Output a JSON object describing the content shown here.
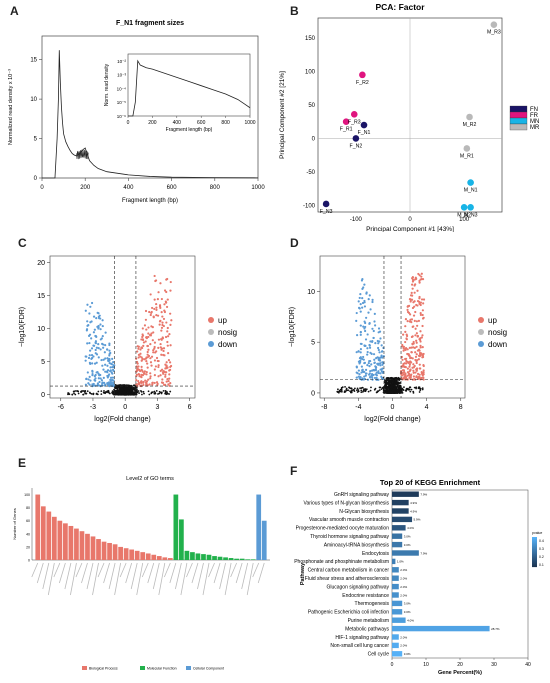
{
  "panels": {
    "A": "A",
    "B": "B",
    "C": "C",
    "D": "D",
    "E": "E",
    "F": "F"
  },
  "colors": {
    "up": "#e8776b",
    "down": "#5b9bd5",
    "nosig": "#111111",
    "FN": "#1a1466",
    "FR": "#e0157f",
    "MN": "#18b4e6",
    "MR": "#b9b9b9",
    "go_bp": "#e8776b",
    "go_mf": "#22b14c",
    "go_cc": "#5b9bd5",
    "kegg_dark": "#1c3553",
    "kegg_light": "#56b1f7"
  },
  "chart_data": [
    {
      "id": "A",
      "type": "line",
      "title": "F_N1 fragment sizes",
      "xlabel": "Fragment length (bp)",
      "ylabel": "Normalized read density x 10⁻³",
      "xticks": [
        "0",
        "200",
        "400",
        "600",
        "800",
        "1000"
      ],
      "yticks": [
        "0",
        "5",
        "10",
        "15"
      ],
      "xlim": [
        0,
        1000
      ],
      "ylim": [
        0,
        18
      ],
      "series": [
        {
          "x": [
            0,
            60,
            70,
            76,
            80,
            85,
            90,
            95,
            100,
            110,
            120,
            130,
            140,
            150,
            160,
            170,
            180,
            190,
            200,
            210,
            220,
            240,
            260,
            300,
            400,
            500,
            600,
            800,
            1000
          ],
          "y": [
            0,
            0,
            5,
            10,
            16.2,
            12,
            9,
            7,
            5.6,
            4.6,
            4.0,
            3.5,
            3.1,
            2.9,
            2.8,
            3.0,
            3.3,
            3.6,
            3.8,
            3.0,
            2.2,
            1.6,
            1.2,
            0.8,
            0.4,
            0.2,
            0.1,
            0.05,
            0.02
          ]
        }
      ],
      "inset": {
        "xlabel": "Fragment length (bp)",
        "ylabel": "Norm. read density",
        "xticks": [
          "0",
          "200",
          "400",
          "600",
          "800",
          "1000"
        ],
        "yticks": [
          "10⁻²",
          "10⁻³",
          "10⁻⁴",
          "10⁻⁵",
          "10⁻⁶"
        ],
        "scale": "log",
        "series": [
          {
            "x": [
              0,
              40,
              60,
              80,
              100,
              150,
              200,
              300,
              400,
              500,
              600,
              700,
              800,
              900,
              950,
              1000
            ],
            "y": [
              -6,
              -6,
              -5,
              -2,
              -2.3,
              -2.5,
              -2.6,
              -2.9,
              -3.2,
              -3.5,
              -3.8,
              -4.1,
              -4.4,
              -4.8,
              -5.1,
              -5.4
            ]
          }
        ]
      }
    },
    {
      "id": "B",
      "type": "scatter",
      "title": "PCA: Factor",
      "xlabel": "Principal Component #1 [43%]",
      "ylabel": "Principal Component #2 [21%]",
      "xticks": [
        "-100",
        "0",
        "100"
      ],
      "yticks": [
        "-100",
        "-50",
        "0",
        "50",
        "100",
        "150"
      ],
      "xlim": [
        -170,
        170
      ],
      "ylim": [
        -110,
        180
      ],
      "legend": [
        "FN",
        "FR",
        "MN",
        "MR"
      ],
      "points": [
        {
          "label": "F_N1",
          "group": "FN",
          "x": -85,
          "y": 20
        },
        {
          "label": "F_N2",
          "group": "FN",
          "x": -100,
          "y": 0
        },
        {
          "label": "F_N3",
          "group": "FN",
          "x": -155,
          "y": -98
        },
        {
          "label": "F_R1",
          "group": "FR",
          "x": -118,
          "y": 25
        },
        {
          "label": "F_R2",
          "group": "FR",
          "x": -88,
          "y": 95
        },
        {
          "label": "F_R3",
          "group": "FR",
          "x": -103,
          "y": 36
        },
        {
          "label": "M_N1",
          "group": "MN",
          "x": 112,
          "y": -66
        },
        {
          "label": "M_N2",
          "group": "MN",
          "x": 100,
          "y": -103
        },
        {
          "label": "M_N3",
          "group": "MN",
          "x": 112,
          "y": -103
        },
        {
          "label": "M_R1",
          "group": "MR",
          "x": 105,
          "y": -15
        },
        {
          "label": "M_R2",
          "group": "MR",
          "x": 110,
          "y": 32
        },
        {
          "label": "M_R3",
          "group": "MR",
          "x": 155,
          "y": 170
        }
      ]
    },
    {
      "id": "C",
      "type": "scatter",
      "xlabel": "log2(Fold change)",
      "ylabel": "−log10(FDR)",
      "xticks": [
        "-6",
        "-3",
        "0",
        "3",
        "6"
      ],
      "yticks": [
        "0",
        "5",
        "10",
        "15",
        "20"
      ],
      "xlim": [
        -7,
        6.5
      ],
      "ylim": [
        -0.5,
        21
      ],
      "vlines": [
        -1,
        1
      ],
      "hline": 1.3,
      "legend": [
        "up",
        "nosig",
        "down"
      ],
      "x_span": [
        -5.5,
        4.3
      ],
      "up_max_y": 18,
      "down_max_y": 14
    },
    {
      "id": "D",
      "type": "scatter",
      "xlabel": "log2(Fold change)",
      "ylabel": "−log10(FDR)",
      "xticks": [
        "-8",
        "-4",
        "0",
        "4",
        "8"
      ],
      "yticks": [
        "0",
        "5",
        "10"
      ],
      "xlim": [
        -8.5,
        8.5
      ],
      "ylim": [
        -0.5,
        13.5
      ],
      "vlines": [
        -1,
        1
      ],
      "hline": 1.3,
      "legend": [
        "up",
        "nosig",
        "down"
      ],
      "x_span": [
        -6.5,
        3.7
      ],
      "up_max_y": 11.8,
      "down_max_y": 11.5
    },
    {
      "id": "E",
      "type": "bar",
      "title": "Level2 of GO terms",
      "ylabel": "Number of Genes",
      "yticks": [
        "0",
        "20",
        "40",
        "60",
        "80",
        "100"
      ],
      "ylim": [
        0,
        110
      ],
      "legend": [
        "Biological Process",
        "Molecular Function",
        "Cellular Component"
      ],
      "series": [
        {
          "name": "Biological Process",
          "values": [
            100,
            82,
            74,
            66,
            60,
            56,
            52,
            48,
            44,
            40,
            36,
            32,
            28,
            26,
            24,
            20,
            18,
            16,
            14,
            12,
            10,
            8,
            6,
            4,
            3
          ]
        },
        {
          "name": "Molecular Function",
          "values": [
            100,
            62,
            14,
            12,
            10,
            9,
            8,
            6,
            5,
            4,
            3,
            2,
            2,
            1,
            1
          ]
        },
        {
          "name": "Cellular Component",
          "values": [
            100,
            60
          ]
        }
      ]
    },
    {
      "id": "F",
      "type": "bar",
      "title": "Top 20 of KEGG Enrichment",
      "xlabel": "Gene Percent(%)",
      "ylabel": "Pathway",
      "xticks": [
        "0",
        "10",
        "20",
        "30",
        "40"
      ],
      "xlim": [
        0,
        40
      ],
      "legend_title": "pvalue",
      "legend_ticks": [
        "0.4",
        "0.3",
        "0.2",
        "0.1"
      ],
      "categories": [
        "GnRH signaling pathway",
        "Various types of N-glycan biosynthesis",
        "N-Glycan biosynthesis",
        "Vascular smooth muscle contraction",
        "Progesterone-mediated oocyte maturation",
        "Thyroid hormone signaling pathway",
        "Aminoacyl-tRNA biosynthesis",
        "Endocytosis",
        "Phosphonate and phosphinate metabolism",
        "Central carbon metabolism in cancer",
        "Fluid shear stress and atherosclerosis",
        "Glucagon signaling pathway",
        "Endocrine resistance",
        "Thermogenesis",
        "Pathogenic Escherichia coli infection",
        "Purine metabolism",
        "Metabolic pathways",
        "HIF-1 signaling pathway",
        "Non-small cell lung cancer",
        "Cell cycle"
      ],
      "values": [
        7.9,
        4.9,
        4.9,
        5.9,
        4.0,
        3.0,
        3.0,
        7.9,
        1.0,
        2.0,
        2.0,
        2.0,
        2.0,
        3.0,
        3.0,
        4.0,
        28.7,
        2.0,
        2.0,
        3.0
      ],
      "pvalues": [
        0.02,
        0.04,
        0.05,
        0.08,
        0.12,
        0.22,
        0.24,
        0.25,
        0.27,
        0.3,
        0.3,
        0.32,
        0.33,
        0.35,
        0.36,
        0.38,
        0.4,
        0.42,
        0.43,
        0.45
      ]
    }
  ]
}
